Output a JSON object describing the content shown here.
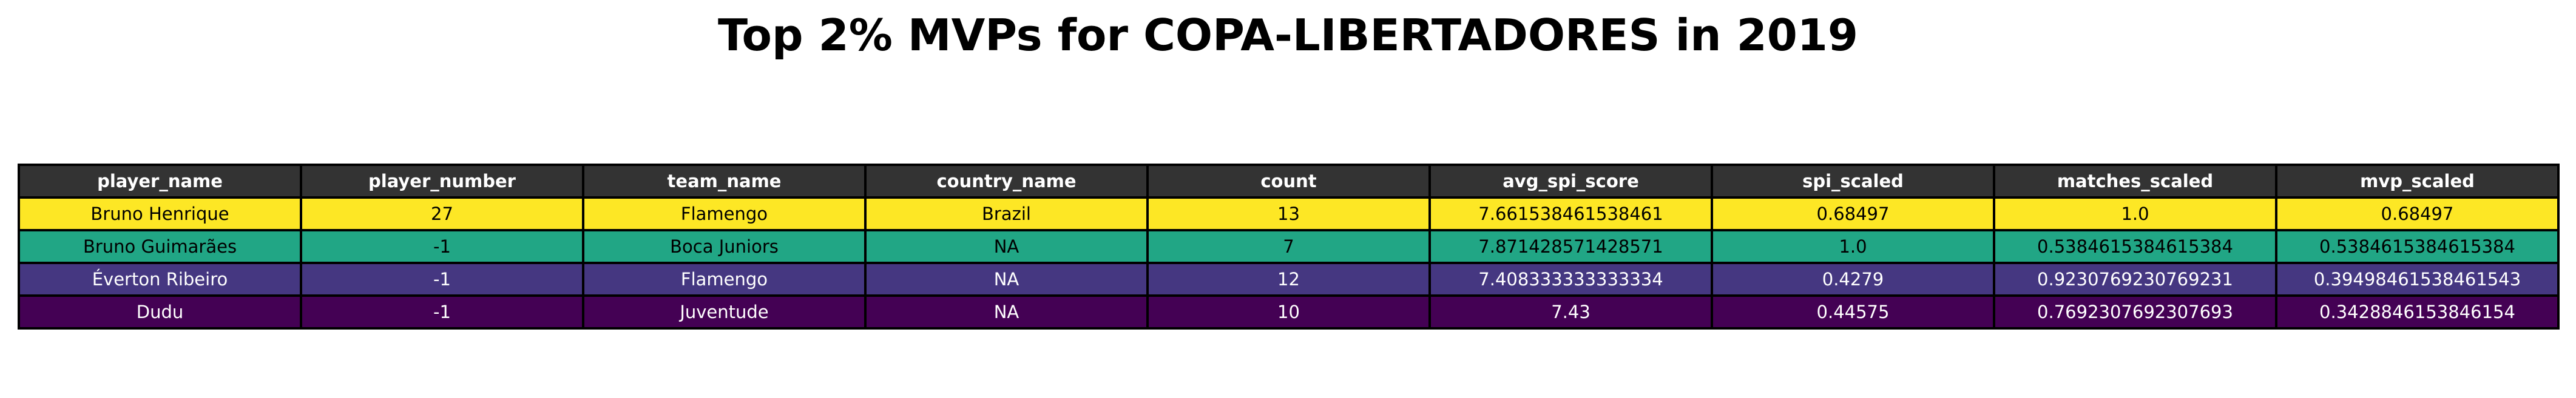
{
  "chart_data": {
    "type": "table",
    "title": "Top 2% MVPs for COPA-LIBERTADORES in 2019",
    "header_color": "#333333",
    "columns": [
      "player_name",
      "player_number",
      "team_name",
      "country_name",
      "count",
      "avg_spi_score",
      "spi_scaled",
      "matches_scaled",
      "mvp_scaled"
    ],
    "rows": [
      {
        "cells": [
          "Bruno Henrique",
          "27",
          "Flamengo",
          "Brazil",
          "13",
          "7.661538461538461",
          "0.68497",
          "1.0",
          "0.68497"
        ],
        "bg": "#fde725",
        "fg": "#000000"
      },
      {
        "cells": [
          "Bruno Guimarães",
          "-1",
          "Boca Juniors",
          "NA",
          "7",
          "7.871428571428571",
          "1.0",
          "0.5384615384615384",
          "0.5384615384615384"
        ],
        "bg": "#21a685",
        "fg": "#000000"
      },
      {
        "cells": [
          "Éverton Ribeiro",
          "-1",
          "Flamengo",
          "NA",
          "12",
          "7.408333333333334",
          "0.4279",
          "0.9230769230769231",
          "0.39498461538461543"
        ],
        "bg": "#453781",
        "fg": "#ffffff"
      },
      {
        "cells": [
          "Dudu",
          "-1",
          "Juventude",
          "NA",
          "10",
          "7.43",
          "0.44575",
          "0.7692307692307693",
          "0.3428846153846154"
        ],
        "bg": "#440154",
        "fg": "#ffffff"
      }
    ]
  }
}
